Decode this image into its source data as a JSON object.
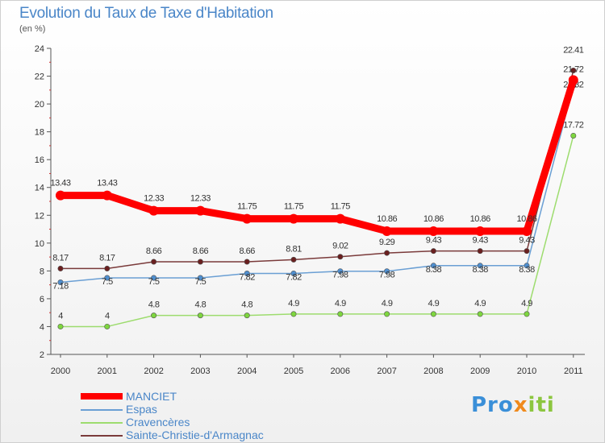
{
  "chart_data": {
    "type": "line",
    "title": "Evolution du Taux de Taxe d'Habitation",
    "subtitle": "(en %)",
    "categories": [
      "2000",
      "2001",
      "2002",
      "2003",
      "2004",
      "2005",
      "2006",
      "2007",
      "2008",
      "2009",
      "2010",
      "2011"
    ],
    "ylim": [
      2,
      24
    ],
    "yticks": [
      2,
      4,
      6,
      8,
      10,
      12,
      14,
      16,
      18,
      20,
      22,
      24
    ],
    "grid": false,
    "legend_position": "bottom-left",
    "series": [
      {
        "name": "Espas",
        "color": "#6a9fd4",
        "values": [
          7.18,
          7.5,
          7.5,
          7.5,
          7.82,
          7.82,
          7.98,
          7.98,
          8.38,
          8.38,
          8.38,
          21.32
        ],
        "labels": [
          "7.18",
          "7.5",
          "7.5",
          "7.5",
          "7.82",
          "7.82",
          "7.98",
          "7.98",
          "8.38",
          "8.38",
          "8.38",
          "21.32"
        ]
      },
      {
        "name": "Cravencères",
        "color": "#9ddc6e",
        "values": [
          4,
          4,
          4.8,
          4.8,
          4.8,
          4.9,
          4.9,
          4.9,
          4.9,
          4.9,
          4.9,
          17.72
        ],
        "labels": [
          "4",
          "4",
          "4.8",
          "4.8",
          "4.8",
          "4.9",
          "4.9",
          "4.9",
          "4.9",
          "4.9",
          "4.9",
          "17.72"
        ]
      },
      {
        "name": "Sainte-Christie-d'Armagnac",
        "color": "#7a3a3a",
        "values": [
          8.17,
          8.17,
          8.66,
          8.66,
          8.66,
          8.81,
          9.02,
          9.29,
          9.43,
          9.43,
          9.43,
          22.41
        ],
        "labels": [
          "8.17",
          "8.17",
          "8.66",
          "8.66",
          "8.66",
          "8.81",
          "9.02",
          "9.29",
          "9.43",
          "9.43",
          "9.43",
          "22.41"
        ]
      },
      {
        "name": "MANCIET",
        "color": "#ff0000",
        "values": [
          13.43,
          13.43,
          12.33,
          12.33,
          11.75,
          11.75,
          11.75,
          10.86,
          10.86,
          10.86,
          10.86,
          21.72
        ],
        "labels": [
          "13.43",
          "13.43",
          "12.33",
          "12.33",
          "11.75",
          "11.75",
          "11.75",
          "10.86",
          "10.86",
          "10.86",
          "10.86",
          "21.72"
        ]
      }
    ]
  },
  "brand": {
    "part1": "Pro",
    "part2": "x",
    "part3": "iti"
  }
}
